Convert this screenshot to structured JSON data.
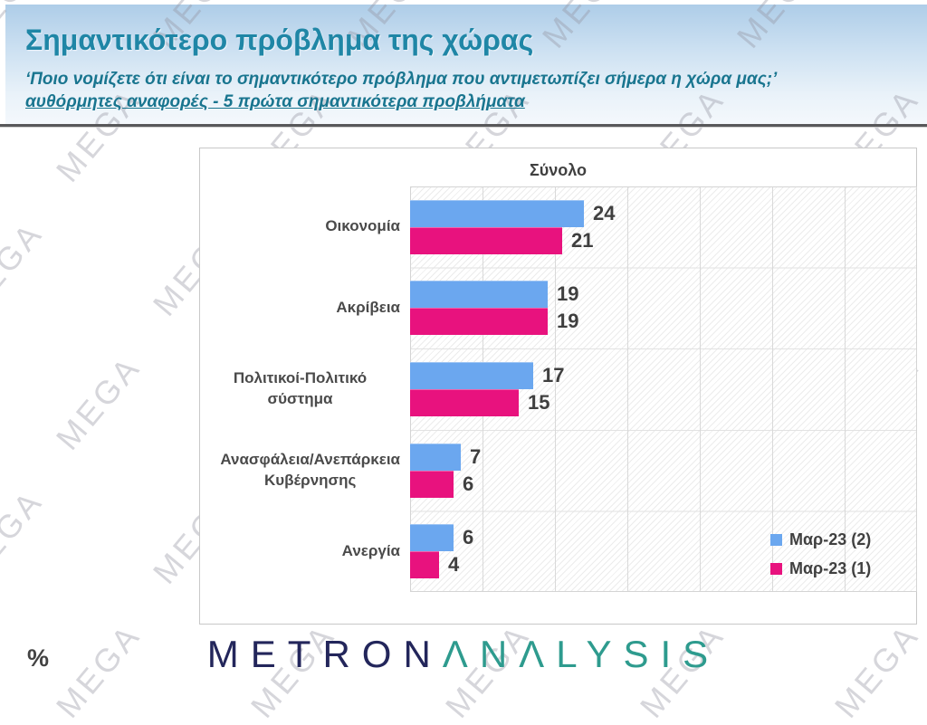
{
  "header": {
    "title": "Σημαντικότερο πρόβλημα της χώρας",
    "subtitle_question": "‘Ποιο νομίζετε ότι  είναι το σημαντικότερο πρόβλημα που αντιμετωπίζει σήμερα η χώρα μας;’",
    "subtitle_note": "αυθόρμητες αναφορές - 5 πρώτα σημαντικότερα προβλήματα"
  },
  "chart_data": {
    "type": "bar",
    "orientation": "horizontal",
    "title": "Σύνολο",
    "categories": [
      "Οικονομία",
      "Ακρίβεια",
      "Πολιτικοί-Πολιτικό σύστημα",
      "Ανασφάλεια/Ανεπάρκεια\nΚυβέρνησης",
      "Ανεργία"
    ],
    "series": [
      {
        "name": "Μαρ-23 (2)",
        "color": "#6BA7EF",
        "values": [
          24,
          19,
          17,
          7,
          6
        ]
      },
      {
        "name": "Μαρ-23 (1)",
        "color": "#E8127E",
        "values": [
          21,
          19,
          15,
          6,
          4
        ]
      }
    ],
    "xlim": [
      0,
      70
    ],
    "gridline_interval": 10,
    "grid": true,
    "legend_position": "bottom-right",
    "value_labels": true,
    "unit": "%"
  },
  "footer": {
    "unit_label": "%",
    "logo_part1": "METRON",
    "logo_part2": "ΛNΛLYSIS"
  },
  "watermark": {
    "text": "MEGA"
  },
  "colors": {
    "title_teal": "#1f86a6",
    "subtitle_teal": "#19758f",
    "divider_gray": "#58585a",
    "bar_blue": "#6BA7EF",
    "bar_pink": "#E8127E",
    "chart_text": "#404040",
    "logo_navy": "#23265b",
    "logo_teal": "#2e9b8e",
    "header_gradient_top": "#aecde8",
    "header_gradient_bottom": "#f4f8fc"
  }
}
